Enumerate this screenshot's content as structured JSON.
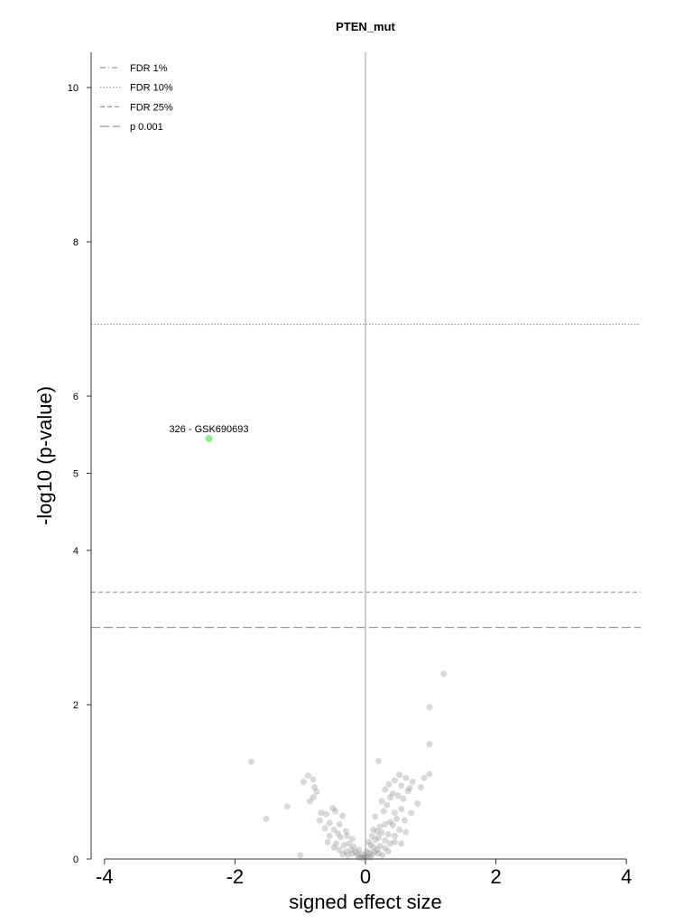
{
  "chart_data": {
    "type": "scatter",
    "title": "PTEN_mut",
    "xlabel": "signed effect size",
    "ylabel": "-log10 (p-value)",
    "xlim": [
      -4.2,
      4.2
    ],
    "ylim": [
      0,
      10.5
    ],
    "x_ticks": [
      -4,
      -2,
      0,
      2,
      4
    ],
    "x_tick_labels": [
      "-4",
      "-2",
      "0",
      "2",
      "4"
    ],
    "y_ticks": [
      0,
      2,
      4,
      5,
      6,
      8,
      10
    ],
    "y_tick_labels": [
      "0",
      "2",
      "4",
      "5",
      "6",
      "8",
      "10"
    ],
    "legend_position": "top-left",
    "legend": [
      {
        "label": "FDR 1%",
        "style": "dash-dot"
      },
      {
        "label": "FDR 10%",
        "style": "dotted"
      },
      {
        "label": "FDR 25%",
        "style": "dashed"
      },
      {
        "label": "p 0.001",
        "style": "long-dashed"
      }
    ],
    "threshold_lines": [
      {
        "name": "FDR 10%",
        "y": 6.93,
        "style": "dotted"
      },
      {
        "name": "FDR 25%",
        "y": 3.46,
        "style": "dashed"
      },
      {
        "name": "p 0.001",
        "y": 3.0,
        "style": "long-dashed"
      }
    ],
    "highlight": {
      "x": -2.4,
      "y": 5.45,
      "label": "326 - GSK690693",
      "color": "#90ee90"
    },
    "point_color": "#666666",
    "points": [
      [
        1.2,
        2.4
      ],
      [
        0.98,
        1.97
      ],
      [
        0.98,
        1.49
      ],
      [
        -1.75,
        1.26
      ],
      [
        0.2,
        1.27
      ],
      [
        0.98,
        1.1
      ],
      [
        -0.88,
        1.08
      ],
      [
        -0.8,
        1.03
      ],
      [
        0.52,
        1.09
      ],
      [
        0.62,
        1.05
      ],
      [
        0.45,
        1.02
      ],
      [
        0.72,
        1.0
      ],
      [
        0.36,
        0.97
      ],
      [
        0.55,
        0.95
      ],
      [
        0.85,
        0.93
      ],
      [
        0.68,
        0.92
      ],
      [
        -0.95,
        1.0
      ],
      [
        -0.78,
        0.93
      ],
      [
        -0.75,
        0.87
      ],
      [
        -0.8,
        0.8
      ],
      [
        0.3,
        0.9
      ],
      [
        0.42,
        0.85
      ],
      [
        0.5,
        0.82
      ],
      [
        0.58,
        0.78
      ],
      [
        0.65,
        0.88
      ],
      [
        0.25,
        0.75
      ],
      [
        0.38,
        0.8
      ],
      [
        0.33,
        0.7
      ],
      [
        0.8,
        0.72
      ],
      [
        -1.2,
        0.68
      ],
      [
        -0.68,
        0.6
      ],
      [
        -0.5,
        0.66
      ],
      [
        -0.46,
        0.62
      ],
      [
        -0.6,
        0.58
      ],
      [
        -0.35,
        0.56
      ],
      [
        0.15,
        0.55
      ],
      [
        0.28,
        0.62
      ],
      [
        0.45,
        0.6
      ],
      [
        0.55,
        0.65
      ],
      [
        0.48,
        0.52
      ],
      [
        -1.52,
        0.52
      ],
      [
        -0.7,
        0.5
      ],
      [
        -0.55,
        0.47
      ],
      [
        -0.4,
        0.45
      ],
      [
        0.38,
        0.48
      ],
      [
        0.42,
        0.44
      ],
      [
        0.3,
        0.45
      ],
      [
        0.22,
        0.42
      ],
      [
        -0.62,
        0.4
      ],
      [
        -0.48,
        0.38
      ],
      [
        -0.3,
        0.36
      ],
      [
        -0.42,
        0.33
      ],
      [
        0.12,
        0.38
      ],
      [
        0.18,
        0.36
      ],
      [
        0.25,
        0.34
      ],
      [
        0.35,
        0.32
      ],
      [
        0.45,
        0.3
      ],
      [
        0.52,
        0.38
      ],
      [
        0.62,
        0.35
      ],
      [
        -0.55,
        0.3
      ],
      [
        -0.38,
        0.28
      ],
      [
        -0.28,
        0.3
      ],
      [
        -0.2,
        0.26
      ],
      [
        0.1,
        0.3
      ],
      [
        0.15,
        0.25
      ],
      [
        0.2,
        0.28
      ],
      [
        0.3,
        0.24
      ],
      [
        0.38,
        0.2
      ],
      [
        0.45,
        0.22
      ],
      [
        0.55,
        0.2
      ],
      [
        -0.58,
        0.22
      ],
      [
        -0.45,
        0.2
      ],
      [
        -0.33,
        0.18
      ],
      [
        -0.25,
        0.2
      ],
      [
        -0.18,
        0.16
      ],
      [
        0.05,
        0.22
      ],
      [
        0.08,
        0.18
      ],
      [
        0.12,
        0.15
      ],
      [
        0.18,
        0.12
      ],
      [
        0.22,
        0.17
      ],
      [
        0.3,
        0.14
      ],
      [
        0.35,
        0.1
      ],
      [
        -0.48,
        0.15
      ],
      [
        -0.4,
        0.12
      ],
      [
        -0.3,
        0.1
      ],
      [
        -0.22,
        0.12
      ],
      [
        -0.15,
        0.09
      ],
      [
        -0.1,
        0.12
      ],
      [
        0.02,
        0.1
      ],
      [
        0.06,
        0.08
      ],
      [
        0.1,
        0.06
      ],
      [
        0.14,
        0.09
      ],
      [
        0.2,
        0.07
      ],
      [
        0.26,
        0.05
      ],
      [
        -0.35,
        0.06
      ],
      [
        -0.27,
        0.05
      ],
      [
        -0.2,
        0.07
      ],
      [
        -0.12,
        0.05
      ],
      [
        -0.06,
        0.06
      ],
      [
        -0.02,
        0.04
      ],
      [
        0.03,
        0.03
      ],
      [
        0.08,
        0.02
      ],
      [
        -0.1,
        0.02
      ],
      [
        -0.05,
        0.01
      ],
      [
        0.0,
        0.02
      ],
      [
        -1.0,
        0.05
      ],
      [
        0.7,
        0.6
      ],
      [
        0.6,
        0.5
      ],
      [
        -0.85,
        0.75
      ],
      [
        0.9,
        1.05
      ]
    ]
  }
}
